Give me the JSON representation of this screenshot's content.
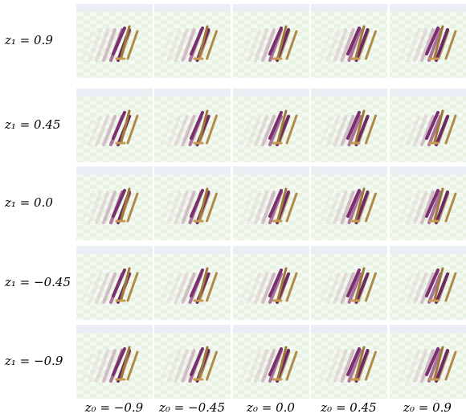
{
  "row_labels": [
    "z₁ = 0.9",
    "z₁ = 0.45",
    "z₁ = 0.0",
    "z₁ = −0.45",
    "z₁ = −0.9"
  ],
  "column_labels": [
    "z₀ = −0.9",
    "z₀ = −0.45",
    "z₀ = 0.0",
    "z₀ = 0.45",
    "z₀ = 0.9"
  ]
}
